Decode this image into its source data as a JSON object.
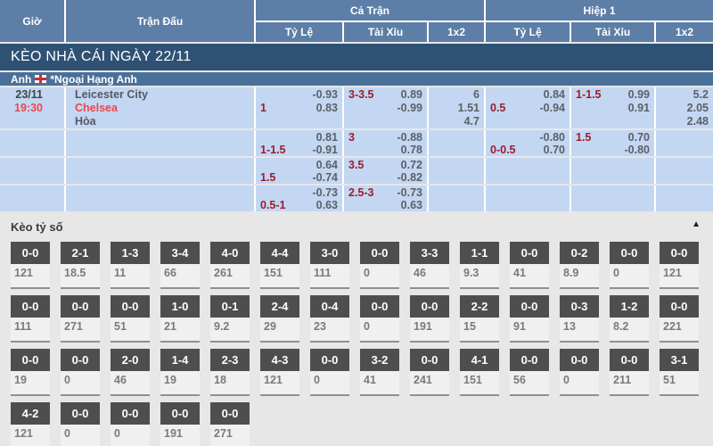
{
  "table": {
    "headers": {
      "gio": "Giờ",
      "tran_dau": "Trận Đấu",
      "ca_tran": "Cả Trận",
      "hiep_1": "Hiệp 1",
      "ty_le": "Tỷ Lệ",
      "tai_xiu": "Tài Xỉu",
      "x12": "1x2"
    },
    "banner": "KÈO NHÀ CÁI NGÀY 22/11",
    "league": {
      "country": "Anh",
      "flag_icon": "england-flag",
      "name": "*Ngoại Hạng Anh"
    },
    "match": {
      "date": "23/11",
      "time": "19:30",
      "home": "Leicester City",
      "away": "Chelsea",
      "draw": "Hòa"
    },
    "odds_rows": [
      {
        "ct_tyle": {
          "hcp": "1",
          "hcp_row": 1,
          "vals": [
            "-0.93",
            "0.83"
          ]
        },
        "ct_taixiu": {
          "hcp": "3-3.5",
          "hcp_row": 0,
          "vals": [
            "0.89",
            "-0.99"
          ]
        },
        "ct_1x2": {
          "vals": [
            "6",
            "1.51",
            "4.7"
          ]
        },
        "h1_tyle": {
          "hcp": "0.5",
          "hcp_row": 1,
          "vals": [
            "0.84",
            "-0.94"
          ]
        },
        "h1_taixiu": {
          "hcp": "1-1.5",
          "hcp_row": 0,
          "vals": [
            "0.99",
            "0.91"
          ]
        },
        "h1_1x2": {
          "vals": [
            "5.2",
            "2.05",
            "2.48"
          ]
        }
      },
      {
        "ct_tyle": {
          "hcp": "1-1.5",
          "hcp_row": 1,
          "vals": [
            "0.81",
            "-0.91"
          ]
        },
        "ct_taixiu": {
          "hcp": "3",
          "hcp_row": 0,
          "vals": [
            "-0.88",
            "0.78"
          ]
        },
        "ct_1x2": null,
        "h1_tyle": {
          "hcp": "0-0.5",
          "hcp_row": 1,
          "vals": [
            "-0.80",
            "0.70"
          ]
        },
        "h1_taixiu": {
          "hcp": "1.5",
          "hcp_row": 0,
          "vals": [
            "0.70",
            "-0.80"
          ]
        },
        "h1_1x2": null
      },
      {
        "ct_tyle": {
          "hcp": "1.5",
          "hcp_row": 1,
          "vals": [
            "0.64",
            "-0.74"
          ]
        },
        "ct_taixiu": {
          "hcp": "3.5",
          "hcp_row": 0,
          "vals": [
            "0.72",
            "-0.82"
          ]
        },
        "ct_1x2": null,
        "h1_tyle": null,
        "h1_taixiu": null,
        "h1_1x2": null
      },
      {
        "ct_tyle": {
          "hcp": "0.5-1",
          "hcp_row": 1,
          "vals": [
            "-0.73",
            "0.63"
          ]
        },
        "ct_taixiu": {
          "hcp": "2.5-3",
          "hcp_row": 0,
          "vals": [
            "-0.73",
            "0.63"
          ]
        },
        "ct_1x2": null,
        "h1_tyle": null,
        "h1_taixiu": null,
        "h1_1x2": null
      }
    ]
  },
  "score_section": {
    "title": "Kèo tỷ số",
    "collapse_icon": "▲",
    "rows": [
      [
        {
          "score": "0-0",
          "odds": "121"
        },
        {
          "score": "2-1",
          "odds": "18.5"
        },
        {
          "score": "1-3",
          "odds": "11"
        },
        {
          "score": "3-4",
          "odds": "66"
        },
        {
          "score": "4-0",
          "odds": "261"
        },
        {
          "score": "4-4",
          "odds": "151"
        },
        {
          "score": "3-0",
          "odds": "111"
        },
        {
          "score": "0-0",
          "odds": "0"
        },
        {
          "score": "3-3",
          "odds": "46"
        },
        {
          "score": "1-1",
          "odds": "9.3"
        },
        {
          "score": "0-0",
          "odds": "41"
        },
        {
          "score": "0-2",
          "odds": "8.9"
        },
        {
          "score": "0-0",
          "odds": "0"
        },
        {
          "score": "0-0",
          "odds": "121"
        }
      ],
      [
        {
          "score": "0-0",
          "odds": "111"
        },
        {
          "score": "0-0",
          "odds": "271"
        },
        {
          "score": "0-0",
          "odds": "51"
        },
        {
          "score": "1-0",
          "odds": "21"
        },
        {
          "score": "0-1",
          "odds": "9.2"
        },
        {
          "score": "2-4",
          "odds": "29"
        },
        {
          "score": "0-4",
          "odds": "23"
        },
        {
          "score": "0-0",
          "odds": "0"
        },
        {
          "score": "0-0",
          "odds": "191"
        },
        {
          "score": "2-2",
          "odds": "15"
        },
        {
          "score": "0-0",
          "odds": "91"
        },
        {
          "score": "0-3",
          "odds": "13"
        },
        {
          "score": "1-2",
          "odds": "8.2"
        },
        {
          "score": "0-0",
          "odds": "221"
        }
      ],
      [
        {
          "score": "0-0",
          "odds": "19"
        },
        {
          "score": "0-0",
          "odds": "0"
        },
        {
          "score": "2-0",
          "odds": "46"
        },
        {
          "score": "1-4",
          "odds": "19"
        },
        {
          "score": "2-3",
          "odds": "18"
        },
        {
          "score": "4-3",
          "odds": "121"
        },
        {
          "score": "0-0",
          "odds": "0"
        },
        {
          "score": "3-2",
          "odds": "41"
        },
        {
          "score": "0-0",
          "odds": "241"
        },
        {
          "score": "4-1",
          "odds": "151"
        },
        {
          "score": "0-0",
          "odds": "56"
        },
        {
          "score": "0-0",
          "odds": "0"
        },
        {
          "score": "0-0",
          "odds": "211"
        },
        {
          "score": "3-1",
          "odds": "51"
        }
      ],
      [
        {
          "score": "4-2",
          "odds": "121"
        },
        {
          "score": "0-0",
          "odds": "0"
        },
        {
          "score": "0-0",
          "odds": "0"
        },
        {
          "score": "0-0",
          "odds": "191"
        },
        {
          "score": "0-0",
          "odds": "271"
        }
      ]
    ]
  },
  "colors": {
    "header_blue": "#5d7ea6",
    "banner_navy": "#2e5174",
    "league_blue": "#497099",
    "row_blue": "#c3d7f3",
    "handicap_red": "#9d1d2c",
    "value_gray": "#5c6065",
    "accent_red": "#e8484b",
    "section_bg": "#e7e7e7",
    "score_box_dark": "#4e4e4e",
    "flag_red": "#ce2b37"
  }
}
